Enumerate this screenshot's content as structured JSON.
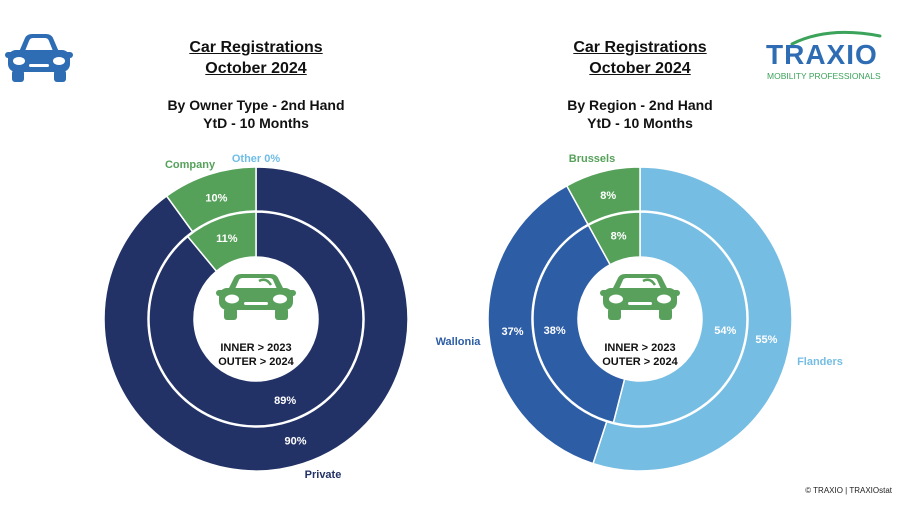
{
  "colors": {
    "dark_navy": "#233266",
    "company_green": "#56A15A",
    "other_blue": "#6FBDE6",
    "wallonia_blue": "#2D5DA5",
    "flanders_blue": "#76BDE3",
    "logo_blue": "#2E6DB4",
    "car_icon_blue": "#2E6DB4",
    "car_icon_green": "#58A05C"
  },
  "icons": {
    "header_left": "car-icon",
    "center": "car-icon"
  },
  "logo": {
    "brand": "TRAXIO",
    "tagline": "MOBILITY PROFESSIONALS"
  },
  "copyright": "© TRAXIO | TRAXIOstat",
  "chart_data": [
    {
      "type": "pie",
      "title": "Car Registrations",
      "title_line2": "October 2024",
      "subtitle": "By Owner Type - 2nd Hand",
      "subtitle_line2": "YtD - 10 Months",
      "center_label_line1": "INNER > 2023",
      "center_label_line2": "OUTER > 2024",
      "categories": [
        "Private",
        "Company",
        "Other"
      ],
      "category_labels": [
        "Private",
        "Company",
        "Other 0%"
      ],
      "series": [
        {
          "name": "INNER > 2023",
          "values": [
            89,
            11,
            0
          ]
        },
        {
          "name": "OUTER > 2024",
          "values": [
            90,
            10,
            0
          ]
        }
      ],
      "colors": [
        "#233266",
        "#56A15A",
        "#6FBDE6"
      ]
    },
    {
      "type": "pie",
      "title": "Car Registrations",
      "title_line2": "October 2024",
      "subtitle": "By Region - 2nd Hand",
      "subtitle_line2": "YtD - 10 Months",
      "center_label_line1": "INNER > 2023",
      "center_label_line2": "OUTER > 2024",
      "categories": [
        "Flanders",
        "Wallonia",
        "Brussels"
      ],
      "category_labels": [
        "Flanders",
        "Wallonia",
        "Brussels"
      ],
      "series": [
        {
          "name": "INNER > 2023",
          "values": [
            54,
            38,
            8
          ]
        },
        {
          "name": "OUTER > 2024",
          "values": [
            55,
            37,
            8
          ]
        }
      ],
      "colors": [
        "#76BDE3",
        "#2D5DA5",
        "#56A15A"
      ]
    }
  ]
}
